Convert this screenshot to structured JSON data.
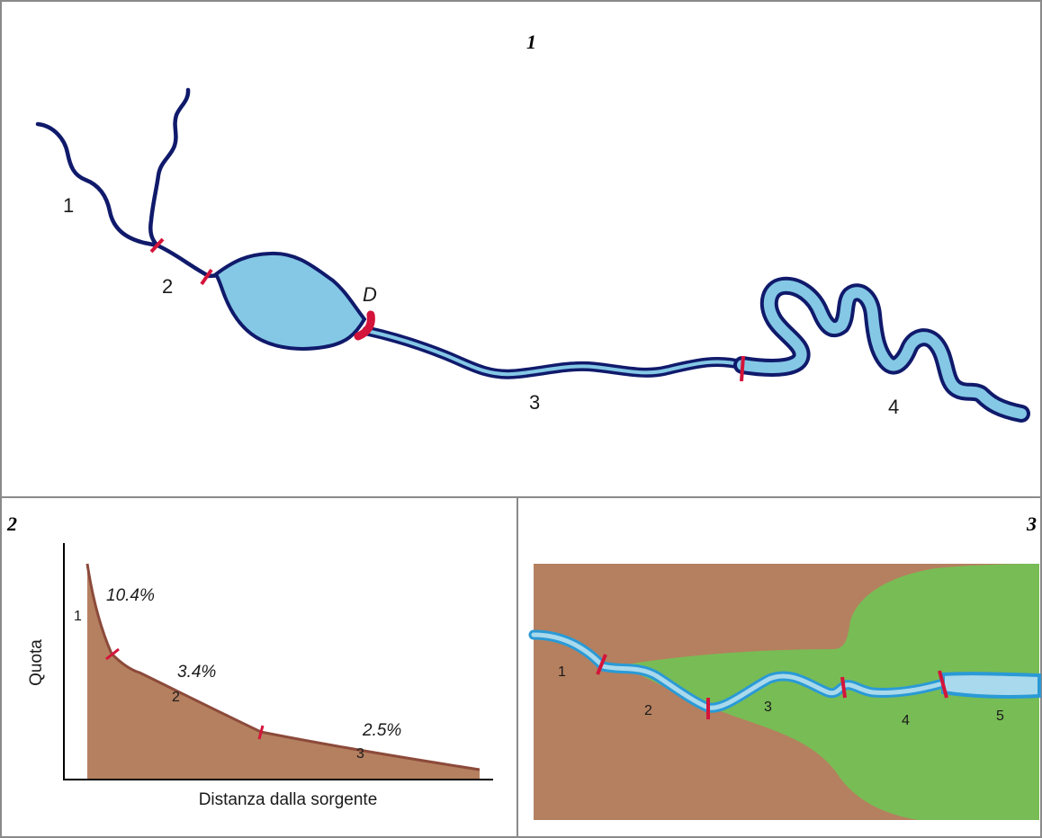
{
  "panels": {
    "plan": {
      "number": "1",
      "segments": [
        "1",
        "2",
        "3",
        "4"
      ],
      "dam_label": "D",
      "colors": {
        "river": "#101a6b",
        "water": "#84c8e6",
        "marker": "#d4143a"
      }
    },
    "profile": {
      "number": "2",
      "ylabel": "Quota",
      "xlabel": "Distanza dalla sorgente",
      "segments": [
        "1",
        "2",
        "3"
      ],
      "slopes": [
        "10.4%",
        "3.4%",
        "2.5%"
      ],
      "colors": {
        "ground": "#b5805f",
        "outline": "#8c4a3a",
        "marker": "#d4143a"
      }
    },
    "valley": {
      "number": "3",
      "segments": [
        "1",
        "2",
        "3",
        "4",
        "5"
      ],
      "colors": {
        "ground": "#b5805f",
        "plain": "#78bc55",
        "water": "#a9d9ec",
        "bank": "#2a9ad6",
        "marker": "#d4143a"
      }
    }
  }
}
